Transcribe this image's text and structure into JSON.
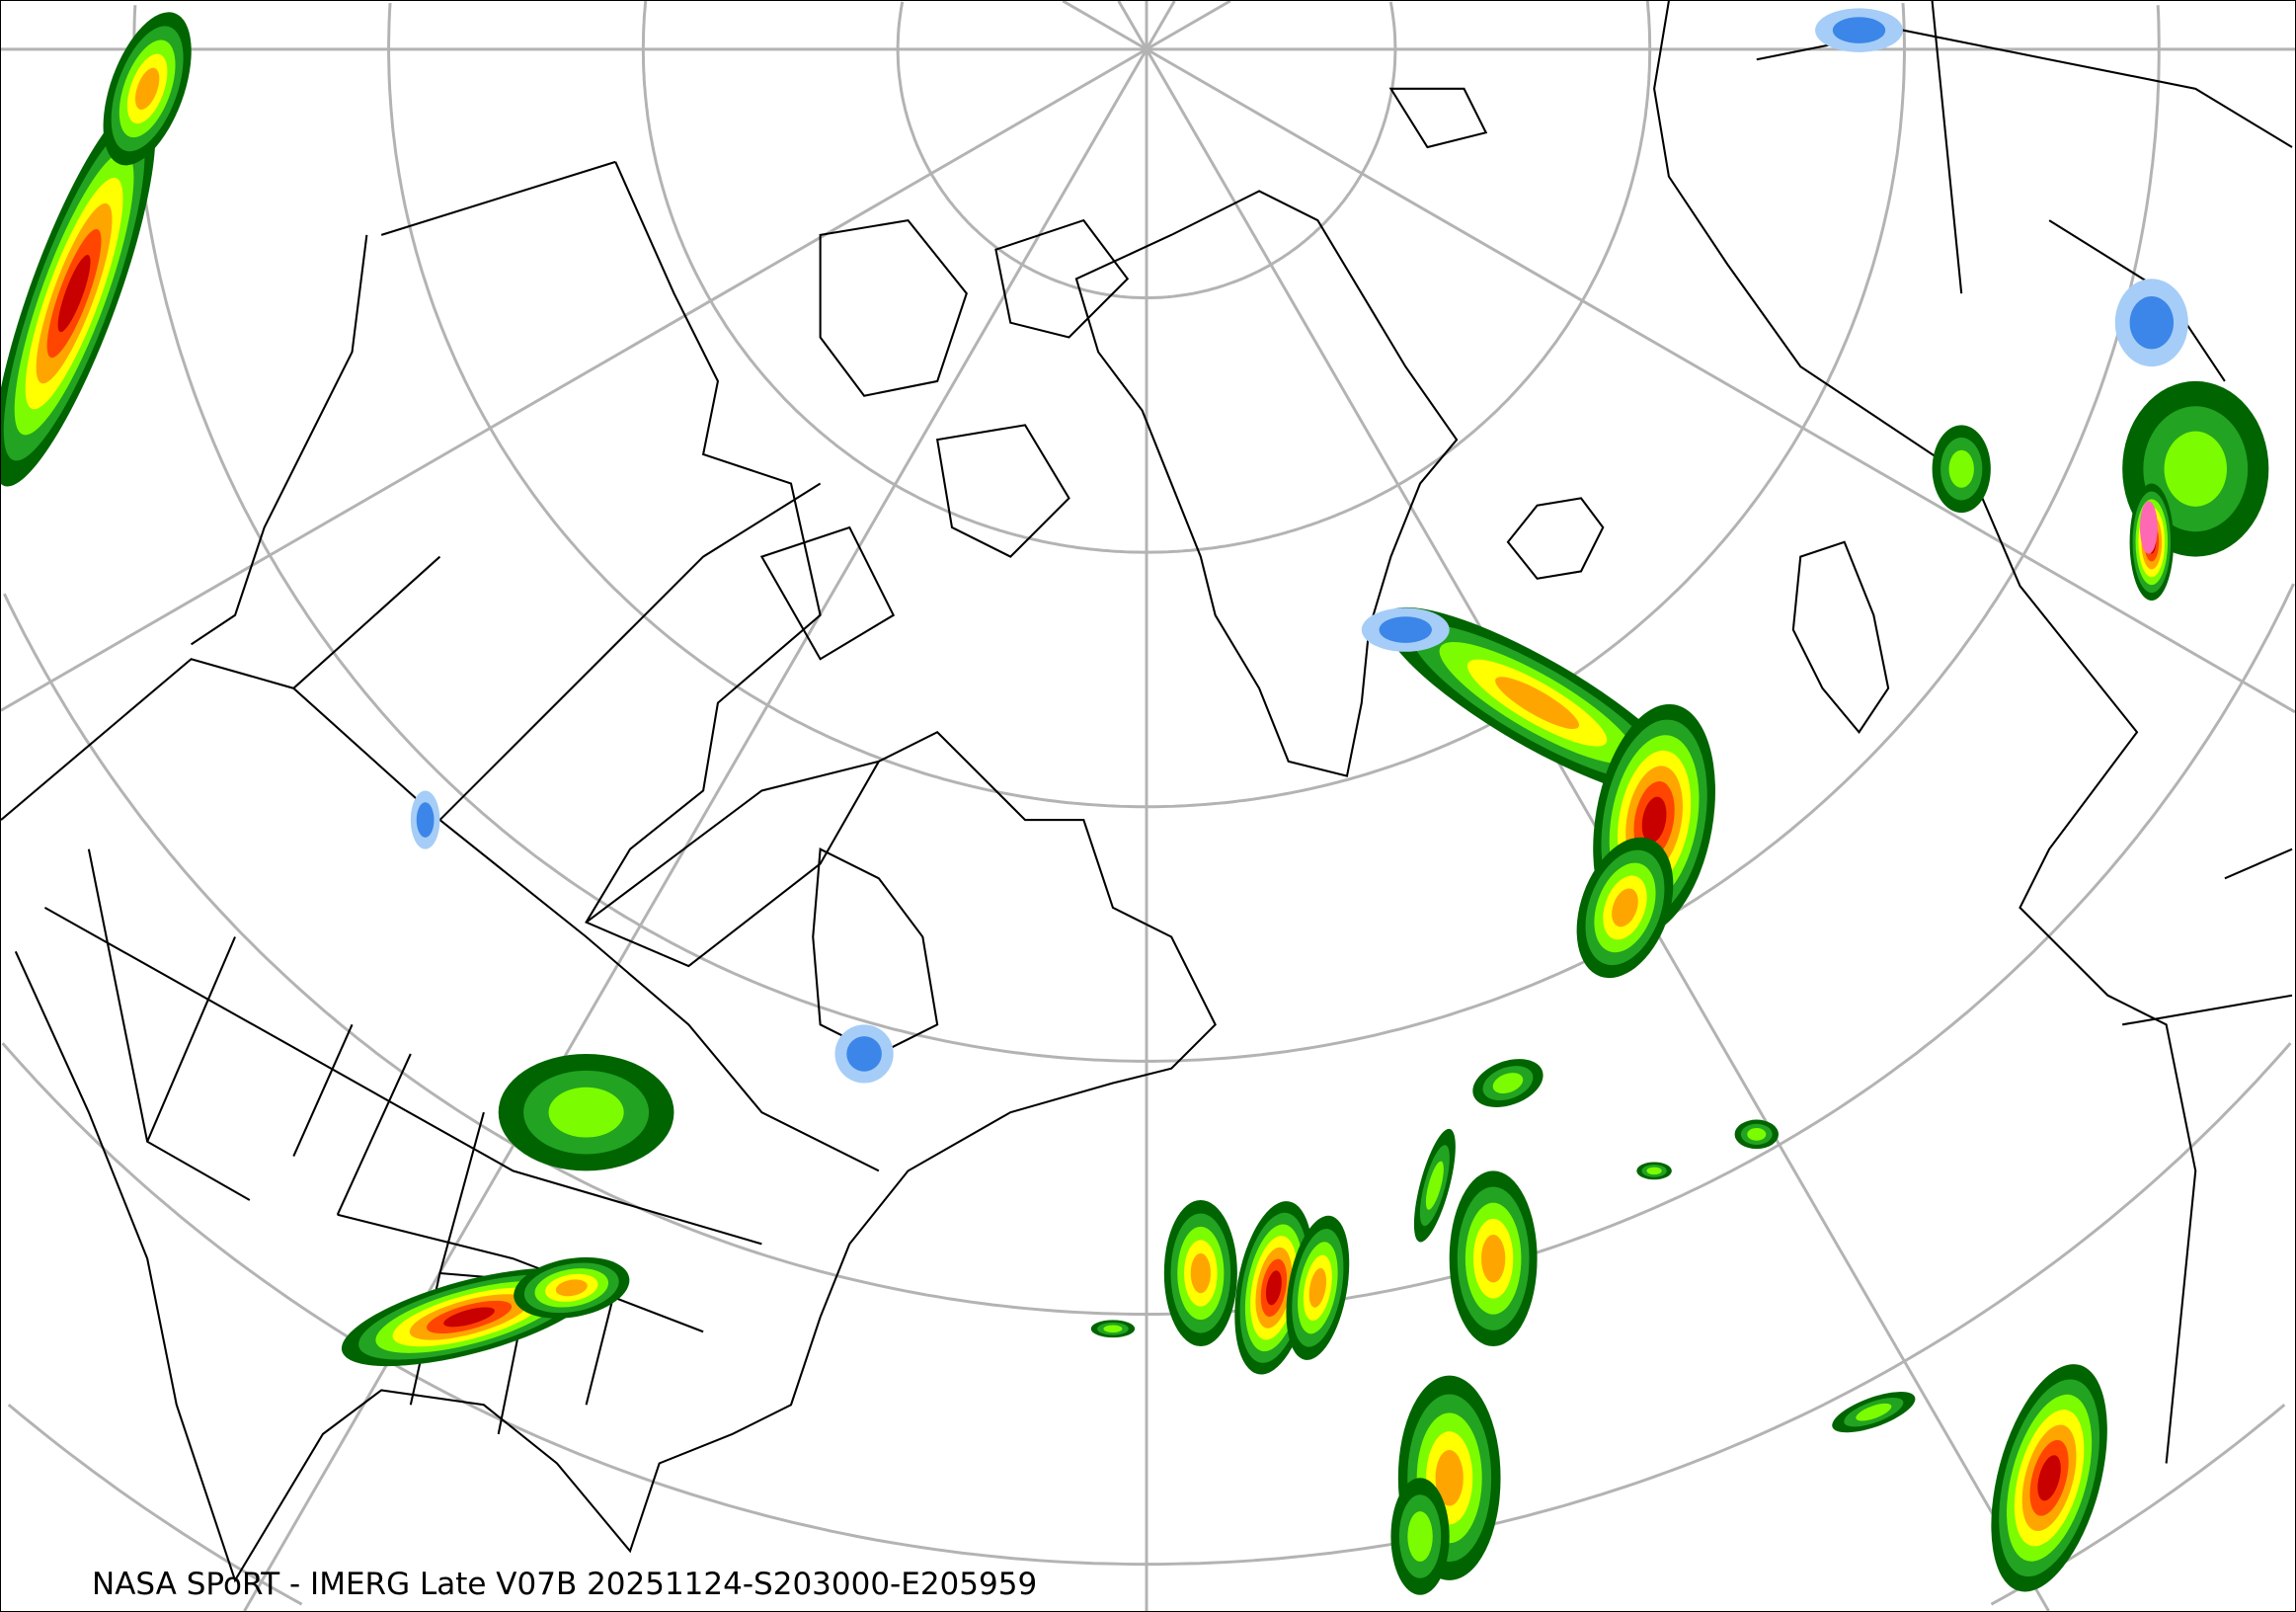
{
  "caption": "NASA SPoRT - IMERG Late V07B 20251124-S203000-E205959",
  "map": {
    "projection": "north-polar stereographic",
    "graticule_color": "#b3b3b3",
    "coastline_color": "#000000",
    "precip_colors": [
      "#a6cdf7",
      "#3b86e8",
      "#006400",
      "#22a322",
      "#7cfc00",
      "#ffff00",
      "#ffa500",
      "#ff4500",
      "#c80000",
      "#ff69b4"
    ]
  }
}
